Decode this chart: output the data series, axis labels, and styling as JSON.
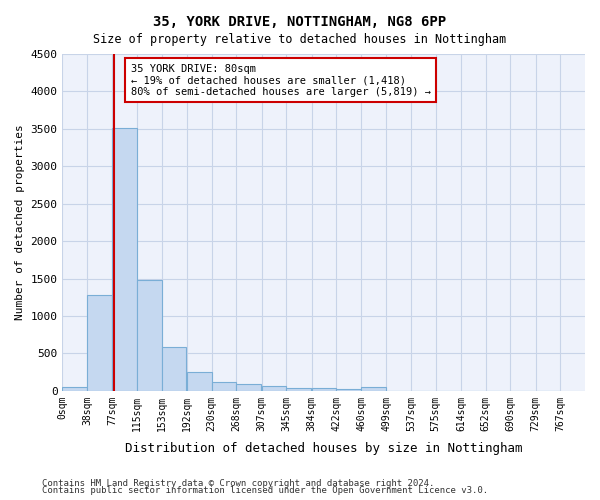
{
  "title1": "35, YORK DRIVE, NOTTINGHAM, NG8 6PP",
  "title2": "Size of property relative to detached houses in Nottingham",
  "xlabel": "Distribution of detached houses by size in Nottingham",
  "ylabel": "Number of detached properties",
  "footnote1": "Contains HM Land Registry data © Crown copyright and database right 2024.",
  "footnote2": "Contains public sector information licensed under the Open Government Licence v3.0.",
  "bar_left_edges": [
    0,
    38,
    77,
    115,
    153,
    192,
    230,
    268,
    307,
    345,
    384,
    422,
    460,
    499,
    537,
    575,
    614,
    652,
    690,
    729
  ],
  "bar_heights": [
    50,
    1280,
    3510,
    1480,
    580,
    245,
    120,
    90,
    60,
    40,
    35,
    30,
    55,
    0,
    0,
    0,
    0,
    0,
    0,
    0
  ],
  "bin_width": 38,
  "bar_color": "#c5d8f0",
  "bar_edgecolor": "#7aaed6",
  "vline_x": 80,
  "vline_color": "#cc0000",
  "ylim": [
    0,
    4500
  ],
  "yticks": [
    0,
    500,
    1000,
    1500,
    2000,
    2500,
    3000,
    3500,
    4000,
    4500
  ],
  "xtick_positions": [
    0,
    38,
    77,
    115,
    153,
    192,
    230,
    268,
    307,
    345,
    384,
    422,
    460,
    499,
    537,
    575,
    614,
    652,
    690,
    729,
    767
  ],
  "xtick_labels": [
    "0sqm",
    "38sqm",
    "77sqm",
    "115sqm",
    "153sqm",
    "192sqm",
    "230sqm",
    "268sqm",
    "307sqm",
    "345sqm",
    "384sqm",
    "422sqm",
    "460sqm",
    "499sqm",
    "537sqm",
    "575sqm",
    "614sqm",
    "652sqm",
    "690sqm",
    "729sqm",
    "767sqm"
  ],
  "annotation_text": "35 YORK DRIVE: 80sqm\n← 19% of detached houses are smaller (1,418)\n80% of semi-detached houses are larger (5,819) →",
  "annotation_box_color": "#ffffff",
  "annotation_box_edgecolor": "#cc0000",
  "grid_color": "#c8d4e8",
  "background_color": "#eef2fb"
}
